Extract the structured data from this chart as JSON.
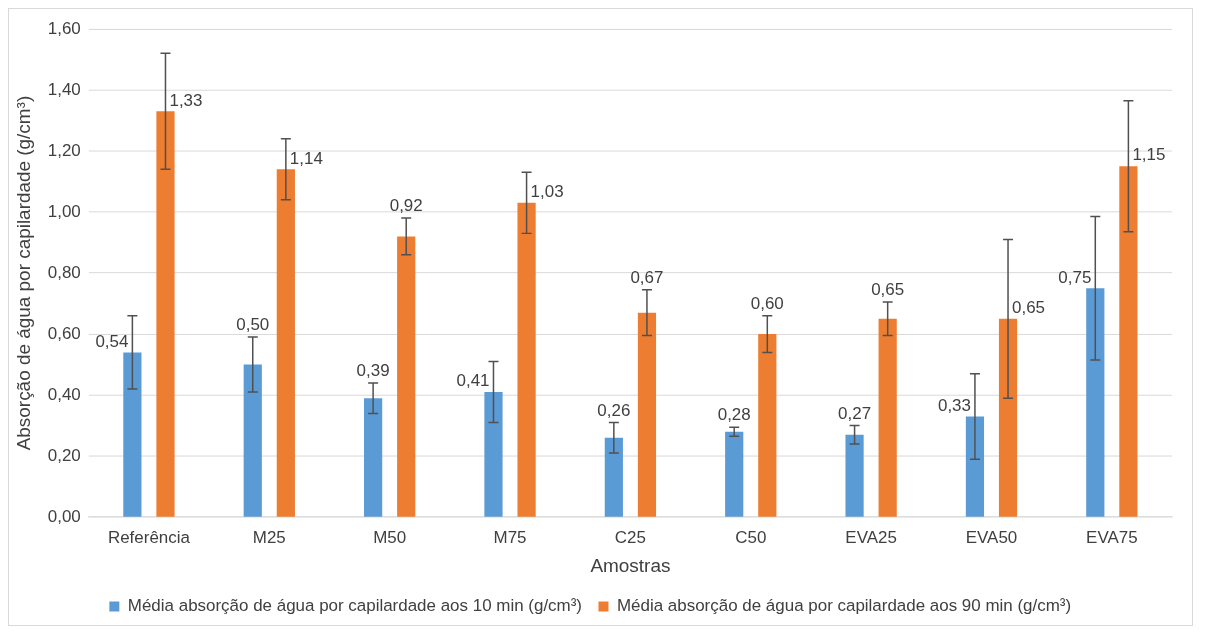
{
  "chart_data": {
    "type": "bar",
    "xlabel": "Amostras",
    "ylabel": "Absorção de água por capilardade (g/cm³)",
    "categories": [
      "Referência",
      "M25",
      "M50",
      "M75",
      "C25",
      "C50",
      "EVA25",
      "EVA50",
      "EVA75"
    ],
    "series": [
      {
        "name": "Média absorção de água por capilardade aos 10 min (g/cm³)",
        "color": "#5b9bd5",
        "values": [
          0.54,
          0.5,
          0.39,
          0.41,
          0.26,
          0.28,
          0.27,
          0.33,
          0.75
        ],
        "errors": [
          0.12,
          0.09,
          0.05,
          0.1,
          0.05,
          0.015,
          0.03,
          0.14,
          0.235
        ],
        "value_labels": [
          "0,54",
          "0,50",
          "0,39",
          "0,41",
          "0,26",
          "0,28",
          "0,27",
          "0,33",
          "0,75"
        ]
      },
      {
        "name": "Média absorção de água por capilardade aos 90 min (g/cm³)",
        "color": "#ed7d31",
        "values": [
          1.33,
          1.14,
          0.92,
          1.03,
          0.67,
          0.6,
          0.65,
          0.65,
          1.15
        ],
        "errors": [
          0.19,
          0.1,
          0.06,
          0.1,
          0.075,
          0.06,
          0.055,
          0.26,
          0.215
        ],
        "value_labels": [
          "1,33",
          "1,14",
          "0,92",
          "1,03",
          "0,67",
          "0,60",
          "0,65",
          "0,65",
          "1,15"
        ]
      }
    ],
    "ylim": [
      0,
      1.6
    ],
    "yticks": [
      {
        "value": 0,
        "label": "0,00"
      },
      {
        "value": 0.2,
        "label": "0,20"
      },
      {
        "value": 0.4,
        "label": "0,40"
      },
      {
        "value": 0.6,
        "label": "0,60"
      },
      {
        "value": 0.8,
        "label": "0,80"
      },
      {
        "value": 1.0,
        "label": "1,00"
      },
      {
        "value": 1.2,
        "label": "1,20"
      },
      {
        "value": 1.4,
        "label": "1,40"
      },
      {
        "value": 1.6,
        "label": "1,60"
      }
    ],
    "grid": "y",
    "legend": "bottom"
  }
}
